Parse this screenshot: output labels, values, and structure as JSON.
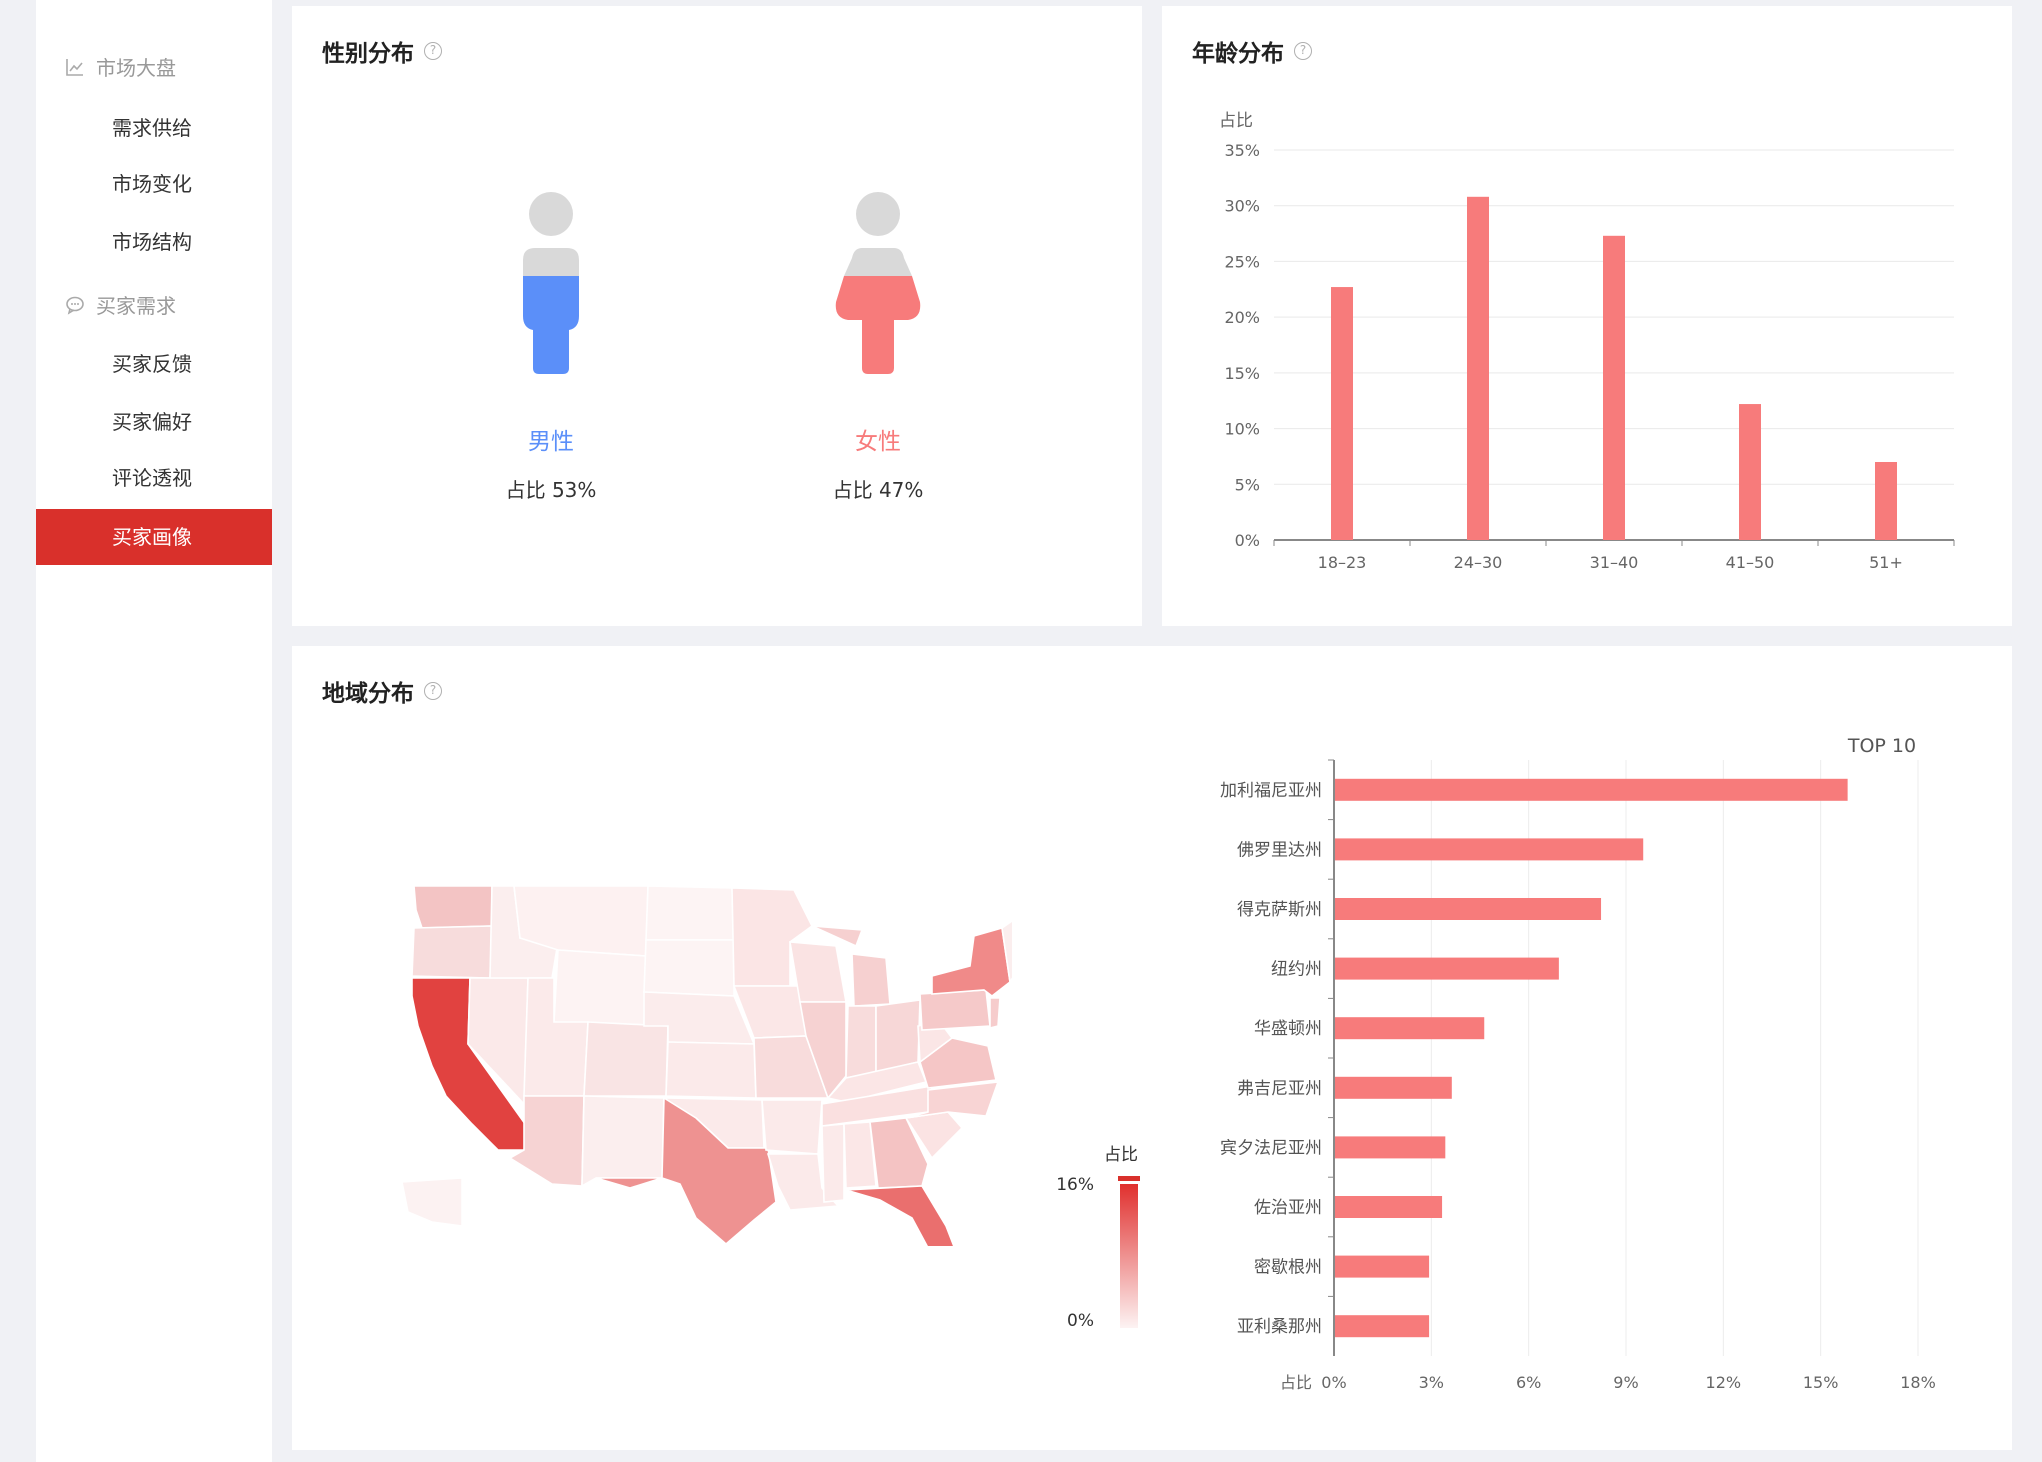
{
  "sidebar": {
    "groups": [
      {
        "label": "市场大盘",
        "icon": "chart-icon",
        "items": [
          "需求供给",
          "市场变化",
          "市场结构"
        ]
      },
      {
        "label": "买家需求",
        "icon": "chat-icon",
        "items": [
          "买家反馈",
          "买家偏好",
          "评论透视",
          "买家画像"
        ]
      }
    ],
    "active_item": "买家画像"
  },
  "gender_card": {
    "title": "性别分布",
    "male": {
      "label": "男性",
      "pct_text": "占比 53%",
      "value": 53,
      "color": "#5b8ff9"
    },
    "female": {
      "label": "女性",
      "pct_text": "占比 47%",
      "value": 47,
      "color": "#f77b7b"
    }
  },
  "age_card": {
    "title": "年龄分布"
  },
  "region_card": {
    "title": "地域分布",
    "legend_title": "占比",
    "legend_max": "16%",
    "legend_min": "0%",
    "top_label": "TOP 10",
    "x_axis_prefix": "占比"
  },
  "colors": {
    "bar": "#f77b7b",
    "accent": "#d9302b",
    "male": "#5b8ff9",
    "female": "#f77b7b"
  },
  "chart_data": [
    {
      "type": "bar",
      "title": "年龄分布",
      "ylabel": "占比",
      "categories": [
        "18-23",
        "24-30",
        "31-40",
        "41-50",
        "51+"
      ],
      "values": [
        22.7,
        30.8,
        27.3,
        12.2,
        7.0
      ],
      "ylim": [
        0,
        35
      ],
      "yticks": [
        "0%",
        "5%",
        "10%",
        "15%",
        "20%",
        "25%",
        "30%",
        "35%"
      ],
      "grid": true
    },
    {
      "type": "bar",
      "orientation": "horizontal",
      "title": "TOP 10",
      "xlabel": "占比",
      "categories": [
        "加利福尼亚州",
        "佛罗里达州",
        "得克萨斯州",
        "纽约州",
        "华盛顿州",
        "弗吉尼亚州",
        "宾夕法尼亚州",
        "佐治亚州",
        "密歇根州",
        "亚利桑那州"
      ],
      "values": [
        15.8,
        9.5,
        8.2,
        6.9,
        4.6,
        3.6,
        3.4,
        3.3,
        2.9,
        2.9
      ],
      "xlim": [
        0,
        18
      ],
      "xticks": [
        "0%",
        "3%",
        "6%",
        "9%",
        "12%",
        "15%",
        "18%"
      ],
      "grid": true
    },
    {
      "type": "heatmap",
      "subtype": "us-state-choropleth",
      "legend": {
        "title": "占比",
        "max": "16%",
        "min": "0%"
      },
      "regions": [
        "加利福尼亚州",
        "佛罗里达州",
        "得克萨斯州",
        "纽约州",
        "华盛顿州",
        "弗吉尼亚州",
        "宾夕法尼亚州",
        "佐治亚州",
        "密歇根州",
        "亚利桑那州"
      ],
      "values": [
        15.8,
        9.5,
        8.2,
        6.9,
        4.6,
        3.6,
        3.4,
        3.3,
        2.9,
        2.9
      ]
    }
  ]
}
